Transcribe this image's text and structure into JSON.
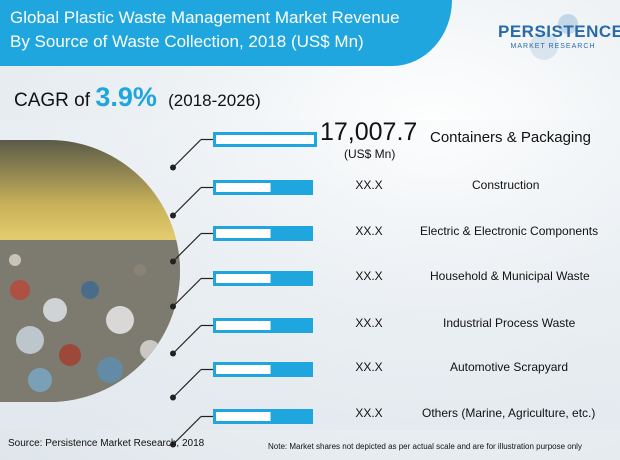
{
  "header": {
    "title_line1": "Global Plastic Waste Management Market Revenue",
    "title_line2": "By Source of Waste Collection, 2018 (US$ Mn)"
  },
  "logo": {
    "main": "PERSISTENCE",
    "sub": "MARKET RESEARCH"
  },
  "cagr": {
    "label": "CAGR of",
    "value": "3.9%",
    "period": "(2018-2026)"
  },
  "chart_data": {
    "type": "bar",
    "categories": [
      "Containers & Packaging",
      "Construction",
      "Electric & Electronic Components",
      "Household & Municipal Waste",
      "Industrial Process Waste",
      "Automotive Scrapyard",
      "Others (Marine, Agriculture, etc.)"
    ],
    "value_labels": [
      "17,007.7",
      "XX.X",
      "XX.X",
      "XX.X",
      "XX.X",
      "XX.X",
      "XX.X"
    ],
    "values": [
      17007.7,
      null,
      null,
      null,
      null,
      null,
      null
    ],
    "unit": "(US$ Mn)",
    "bar_fill_fraction": [
      1.0,
      0.58,
      0.58,
      0.58,
      0.58,
      0.58,
      0.58
    ],
    "colors": {
      "bar": "#1fa6df",
      "bar_fill": "#ffffff",
      "connector": "#222222"
    }
  },
  "footer": {
    "source": "Source: Persistence Market Research, 2018",
    "note": "Note: Market shares not depicted as per actual scale and are for illustration purpose only"
  }
}
